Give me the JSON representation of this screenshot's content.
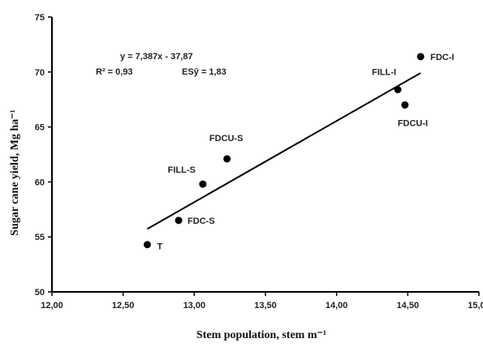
{
  "chart_data": {
    "type": "scatter",
    "title": "",
    "xlabel": "Stem population, stem m⁻¹",
    "ylabel": "Sugar cane yield, Mg ha⁻¹",
    "xlim": [
      12.0,
      15.0
    ],
    "ylim": [
      50,
      75
    ],
    "x_ticks": [
      "12,00",
      "12,50",
      "13,00",
      "13,50",
      "14,00",
      "14,50",
      "15,00"
    ],
    "y_ticks": [
      "50",
      "55",
      "60",
      "65",
      "70",
      "75"
    ],
    "grid": false,
    "legend": "none",
    "points": [
      {
        "label": "T",
        "x": 12.67,
        "y": 54.3
      },
      {
        "label": "FDC-S",
        "x": 12.89,
        "y": 56.5
      },
      {
        "label": "FILL-S",
        "x": 13.06,
        "y": 59.8
      },
      {
        "label": "FDCU-S",
        "x": 13.23,
        "y": 62.1
      },
      {
        "label": "FILL-I",
        "x": 14.43,
        "y": 68.4
      },
      {
        "label": "FDCU-I",
        "x": 14.48,
        "y": 67.0
      },
      {
        "label": "FDC-I",
        "x": 14.59,
        "y": 71.4
      }
    ],
    "regression": {
      "slope": 7.387,
      "intercept": -37.87,
      "x_range": [
        12.67,
        14.59
      ],
      "equation": "y = 7,387x - 37,87",
      "r2": "R² = 0,93",
      "esy": "ESŷ = 1,83"
    },
    "colors": {
      "point": "#000000",
      "line": "#000000",
      "axis": "#000000"
    }
  }
}
